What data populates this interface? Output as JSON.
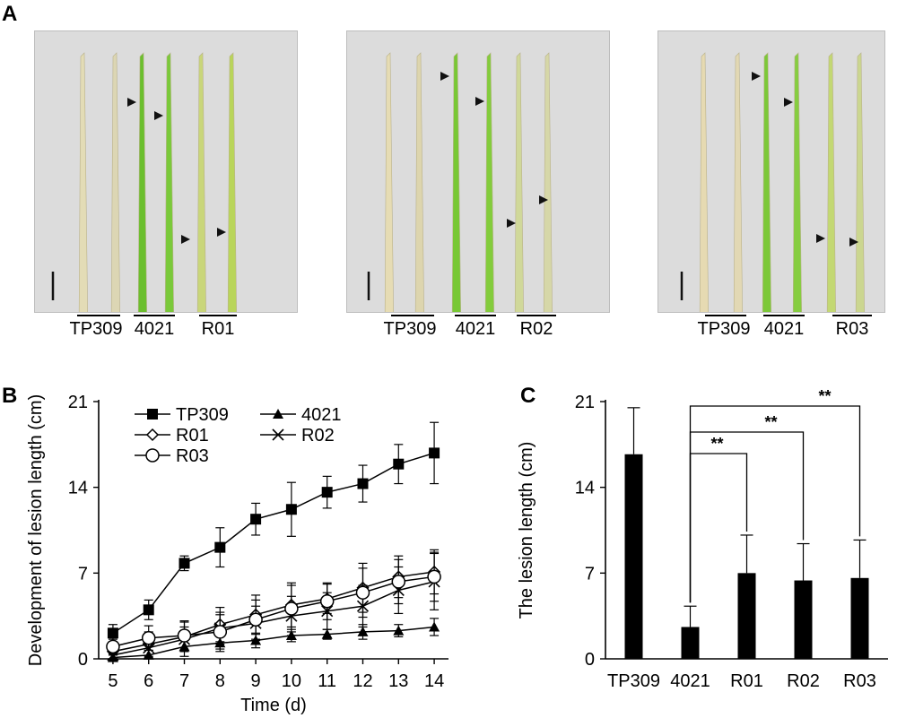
{
  "panels": {
    "a": "A",
    "b": "B",
    "c": "C"
  },
  "photos": [
    {
      "labels": [
        "TP309",
        "4021",
        "R01"
      ],
      "leaf_colors": [
        "#e3dcb6",
        "#dcd6b4",
        "#6bbf2e",
        "#7ac93a",
        "#c9d67a",
        "#b9d55a"
      ]
    },
    {
      "labels": [
        "TP309",
        "4021",
        "R02"
      ],
      "leaf_colors": [
        "#e6dcb4",
        "#ddd5ae",
        "#78c834",
        "#83cc3c",
        "#d0d89a",
        "#d6d7a8"
      ]
    },
    {
      "labels": [
        "TP309",
        "4021",
        "R03"
      ],
      "leaf_colors": [
        "#e6dab2",
        "#e2d8b4",
        "#7cc838",
        "#86cd40",
        "#c3d873",
        "#cbd690"
      ]
    }
  ],
  "chart_data": [
    {
      "type": "line",
      "xlabel": "Time (d)",
      "ylabel": "Development of lesion length (cm)",
      "x": [
        5,
        6,
        7,
        8,
        9,
        10,
        11,
        12,
        13,
        14
      ],
      "xlim": [
        4.6,
        14.4
      ],
      "ylim": [
        0,
        21
      ],
      "yticks": [
        0,
        7,
        14,
        21
      ],
      "legend_placement": "top-left",
      "series": [
        {
          "name": "TP309",
          "marker": "filled-square",
          "values": [
            2.1,
            4.0,
            7.8,
            9.1,
            11.4,
            12.2,
            13.6,
            14.3,
            15.9,
            16.8
          ],
          "err": [
            0.7,
            0.8,
            0.6,
            1.6,
            1.3,
            2.2,
            1.3,
            1.5,
            1.6,
            2.5
          ]
        },
        {
          "name": "4021",
          "marker": "filled-triangle",
          "values": [
            0.1,
            0.3,
            1.0,
            1.3,
            1.5,
            1.9,
            2.0,
            2.2,
            2.3,
            2.6
          ],
          "err": [
            0.2,
            0.4,
            0.8,
            0.7,
            0.6,
            0.5,
            0.4,
            0.6,
            0.5,
            0.7
          ]
        },
        {
          "name": "R01",
          "marker": "open-diamond",
          "values": [
            0.6,
            1.2,
            1.8,
            2.8,
            3.6,
            4.4,
            4.9,
            5.8,
            6.7,
            7.1
          ],
          "err": [
            0.6,
            1.0,
            1.2,
            1.4,
            1.6,
            1.8,
            1.2,
            2.0,
            1.7,
            1.8
          ]
        },
        {
          "name": "R02",
          "marker": "x",
          "values": [
            0.3,
            0.9,
            1.6,
            2.5,
            2.9,
            3.5,
            3.9,
            4.3,
            5.6,
            6.3
          ],
          "err": [
            0.5,
            0.8,
            1.0,
            1.3,
            1.4,
            1.6,
            1.5,
            1.7,
            1.9,
            2.3
          ]
        },
        {
          "name": "R03",
          "marker": "open-circle",
          "values": [
            1.0,
            1.7,
            1.9,
            2.2,
            3.2,
            4.1,
            4.7,
            5.4,
            6.3,
            6.7
          ],
          "err": [
            0.6,
            1.0,
            1.2,
            1.4,
            1.6,
            1.9,
            1.5,
            2.0,
            1.8,
            2.0
          ]
        }
      ]
    },
    {
      "type": "bar",
      "ylabel": "The lesion length (cm)",
      "categories": [
        "TP309",
        "4021",
        "R01",
        "R02",
        "R03"
      ],
      "values": [
        16.7,
        2.6,
        7.0,
        6.4,
        6.6
      ],
      "err": [
        3.8,
        1.7,
        3.1,
        3.0,
        3.1
      ],
      "ylim": [
        0,
        21
      ],
      "yticks": [
        0,
        7,
        14,
        21
      ],
      "significance": [
        {
          "from": "4021",
          "to": "R01",
          "label": "**"
        },
        {
          "from": "4021",
          "to": "R02",
          "label": "**"
        },
        {
          "from": "4021",
          "to": "R03",
          "label": "**"
        }
      ]
    }
  ]
}
